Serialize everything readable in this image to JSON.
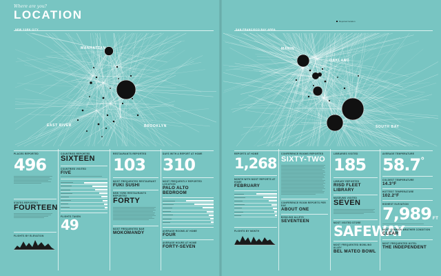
{
  "header": {
    "kicker": "Where are you?",
    "title": "LOCATION",
    "left_region": "NEW YORK CITY",
    "right_region": "SAN FRANCISCO BAY AREA"
  },
  "map_labels": {
    "left": [
      "MANHATTAN",
      "EAST RIVER",
      "BROOKLYN"
    ],
    "right": [
      "MARIN",
      "OAKLAND",
      "SOUTH BAY"
    ]
  },
  "left_stats": {
    "places_reported_label": "PLACES REPORTED",
    "places_reported": "496",
    "countries_label": "COUNTRIES REPORTED",
    "countries": "SIXTEEN",
    "countries_visited_label": "COUNTRIES VISITED",
    "countries_visited": "FIVE",
    "restaurants_label": "RESTAURANTS REPORTED",
    "restaurants": "103",
    "top_restaurant_label": "MOST FREQUENTED RESTAURANT",
    "top_restaurant": "FUKI SUSHI",
    "new_restaurants_label": "NEW YORK RESTAURANTS REPORTED",
    "new_restaurants": "FORTY",
    "days_label": "DAYS WITH A REPORT AT HOME",
    "days": "310",
    "top_location_label": "MOST FREQUENTLY REPORTED LOCATION",
    "top_location": "PALO ALTO BEDROOM",
    "avg_rooms_label": "AVERAGE ROOMS AT HOME",
    "avg_rooms": "FOUR",
    "states_label": "STATES REPORTED",
    "states": "FOURTEEN",
    "flights_label": "FLIGHTS TAKEN",
    "flights": "49",
    "mokmandy_label": "MOST FREQUENTED BAR",
    "mokmandy": "MOKOMANDY",
    "avg_days_label": "AVERAGE HOURS AT HOME",
    "avg_days": "FORTY-SEVEN",
    "elevation_label": "FLIGHTS BY ELEVATION"
  },
  "right_stats": {
    "reports_label": "REPORTS AT HOME",
    "reports": "1,268",
    "home_month_label": "MONTH WITH MOST REPORTS AT HOME",
    "home_month": "FEBRUARY",
    "conference_label": "CONFERENCE ROOMS REPORTED",
    "conference": "SIXTY-TWO",
    "libraries_label": "LIBRARIES VISITED",
    "libraries": "185",
    "top_library_label": "LIBRARY REPORTED",
    "top_library": "RISD FLEET LIBRARY",
    "museums_label": "MUSEUMS VISITED",
    "museums": "SEVEN",
    "temp_label": "AVERAGE TEMPERATURE",
    "temp": "58.7",
    "temp_unit": "°",
    "coldest_label": "COLDEST TEMPERATURE",
    "coldest": "14.3°F",
    "hottest_label": "HOTTEST TEMPERATURE",
    "hottest": "102.2°F",
    "elevation_label": "HIGHEST ELEVATION",
    "elevation": "7,989",
    "elevation_unit": "FT",
    "store_label": "MOST VISITED STORE",
    "store": "SAFEWAY",
    "weather_label": "MOST COMMON WEATHER CONDITION",
    "weather": "CLEAR",
    "about_label": "CONFERENCE ROOM REPORTS PER DAY",
    "about": "ABOUT ONE",
    "seventeen_label": "BOWLING ALLEYS",
    "seventeen": "SEVENTEEN",
    "bowl_label": "MOST FREQUENTED BOWLING ALLEY",
    "bowl": "BEL MATEO BOWL",
    "hotel_label": "MOST FREQUENTED HOTEL",
    "hotel": "THE INDEPENDENT",
    "flights_label": "FLIGHTS BY MONTH"
  },
  "colors": {
    "background": "#78c5c2",
    "ink": "#1a1a1a",
    "highlight": "#ffffff"
  }
}
